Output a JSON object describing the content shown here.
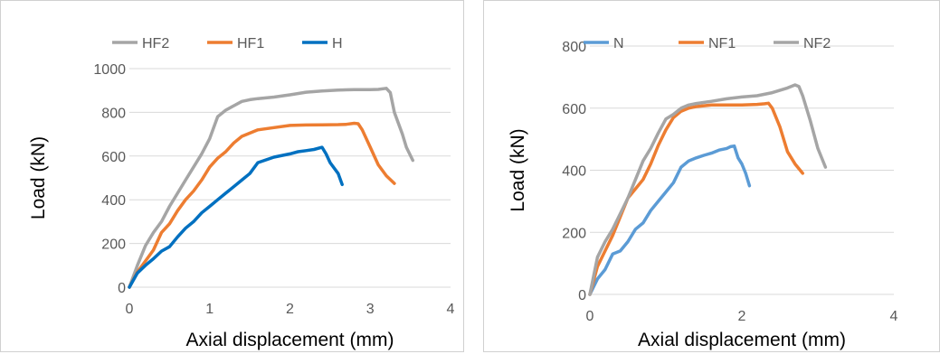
{
  "chart_data": [
    {
      "type": "line",
      "xlabel": "Axial displacement (mm)",
      "ylabel": "Load (kN)",
      "xlim": [
        0,
        4
      ],
      "ylim": [
        0,
        1000
      ],
      "xticks": [
        "0",
        "1",
        "2",
        "3",
        "4"
      ],
      "yticks": [
        "0",
        "200",
        "400",
        "600",
        "800",
        "1000"
      ],
      "legend_position": "top",
      "grid": "horizontal",
      "legend_order": [
        "HF2",
        "HF1",
        "H"
      ],
      "series": [
        {
          "name": "HF2",
          "color": "#a5a5a5",
          "x": [
            0,
            0.1,
            0.2,
            0.3,
            0.4,
            0.5,
            0.6,
            0.7,
            0.8,
            0.9,
            1.0,
            1.1,
            1.2,
            1.3,
            1.4,
            1.5,
            1.6,
            1.8,
            2.0,
            2.2,
            2.4,
            2.6,
            2.8,
            3.0,
            3.1,
            3.2,
            3.25,
            3.3,
            3.4,
            3.45,
            3.53
          ],
          "y": [
            0,
            100,
            190,
            250,
            300,
            370,
            430,
            490,
            550,
            610,
            680,
            780,
            810,
            830,
            850,
            858,
            863,
            870,
            880,
            892,
            898,
            902,
            904,
            904,
            905,
            910,
            890,
            800,
            700,
            640,
            580
          ]
        },
        {
          "name": "HF1",
          "color": "#ed7d31",
          "x": [
            0,
            0.1,
            0.2,
            0.3,
            0.4,
            0.5,
            0.6,
            0.7,
            0.8,
            0.9,
            1.0,
            1.1,
            1.2,
            1.3,
            1.4,
            1.6,
            1.8,
            2.0,
            2.2,
            2.4,
            2.6,
            2.7,
            2.8,
            2.85,
            2.9,
            3.0,
            3.1,
            3.2,
            3.3
          ],
          "y": [
            0,
            70,
            120,
            170,
            250,
            290,
            350,
            400,
            440,
            490,
            550,
            590,
            620,
            660,
            690,
            720,
            730,
            740,
            742,
            743,
            744,
            745,
            750,
            748,
            720,
            640,
            560,
            510,
            475
          ]
        },
        {
          "name": "H",
          "color": "#0070c0",
          "x": [
            0,
            0.1,
            0.2,
            0.3,
            0.4,
            0.5,
            0.6,
            0.7,
            0.8,
            0.9,
            1.0,
            1.1,
            1.2,
            1.3,
            1.4,
            1.5,
            1.6,
            1.8,
            2.0,
            2.1,
            2.2,
            2.3,
            2.4,
            2.45,
            2.5,
            2.6,
            2.65
          ],
          "y": [
            0,
            65,
            100,
            130,
            165,
            185,
            230,
            270,
            300,
            340,
            370,
            400,
            430,
            460,
            490,
            520,
            570,
            595,
            610,
            620,
            625,
            630,
            640,
            610,
            570,
            520,
            470
          ]
        }
      ]
    },
    {
      "type": "line",
      "xlabel": "Axial displacement (mm)",
      "ylabel": "Load (kN)",
      "xlim": [
        0,
        4
      ],
      "ylim": [
        0,
        800
      ],
      "xticks": [
        "0",
        "2",
        "4"
      ],
      "yticks": [
        "0",
        "200",
        "400",
        "600",
        "800"
      ],
      "legend_position": "top",
      "grid": "horizontal",
      "legend_order": [
        "N",
        "NF1",
        "NF2"
      ],
      "series": [
        {
          "name": "N",
          "color": "#5b9bd5",
          "x": [
            0,
            0.1,
            0.2,
            0.3,
            0.4,
            0.5,
            0.6,
            0.7,
            0.8,
            0.9,
            1.0,
            1.1,
            1.2,
            1.3,
            1.4,
            1.5,
            1.6,
            1.7,
            1.8,
            1.85,
            1.9,
            1.95,
            2.0,
            2.05,
            2.1
          ],
          "y": [
            0,
            50,
            80,
            130,
            140,
            170,
            210,
            230,
            270,
            300,
            330,
            360,
            410,
            430,
            440,
            448,
            455,
            465,
            470,
            476,
            478,
            440,
            420,
            390,
            350
          ]
        },
        {
          "name": "NF1",
          "color": "#ed7d31",
          "x": [
            0,
            0.1,
            0.2,
            0.3,
            0.4,
            0.5,
            0.6,
            0.7,
            0.8,
            0.9,
            1.0,
            1.1,
            1.2,
            1.3,
            1.4,
            1.6,
            1.8,
            2.0,
            2.2,
            2.3,
            2.35,
            2.4,
            2.5,
            2.6,
            2.7,
            2.8
          ],
          "y": [
            0,
            90,
            140,
            190,
            250,
            310,
            340,
            370,
            420,
            480,
            530,
            570,
            590,
            600,
            605,
            610,
            610,
            610,
            612,
            614,
            616,
            600,
            540,
            460,
            420,
            390
          ]
        },
        {
          "name": "NF2",
          "color": "#a5a5a5",
          "x": [
            0,
            0.1,
            0.2,
            0.3,
            0.4,
            0.5,
            0.6,
            0.7,
            0.8,
            0.9,
            1.0,
            1.1,
            1.2,
            1.3,
            1.4,
            1.6,
            1.8,
            2.0,
            2.2,
            2.4,
            2.6,
            2.7,
            2.75,
            2.8,
            2.9,
            3.0,
            3.1
          ],
          "y": [
            0,
            120,
            170,
            210,
            260,
            310,
            370,
            430,
            470,
            520,
            565,
            580,
            600,
            610,
            615,
            622,
            630,
            636,
            640,
            650,
            665,
            675,
            670,
            640,
            560,
            470,
            410
          ]
        }
      ]
    }
  ]
}
